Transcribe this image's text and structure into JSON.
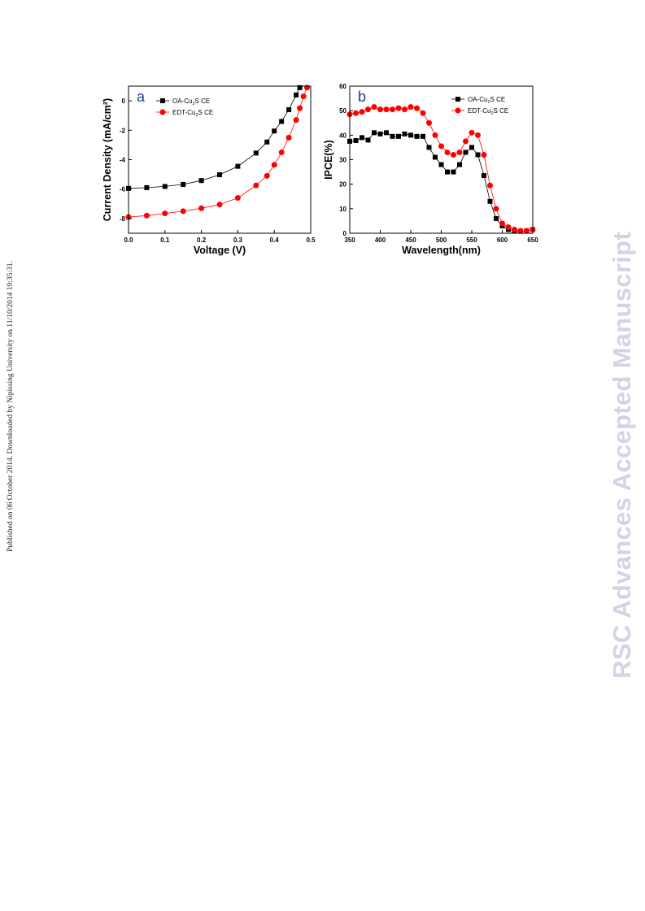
{
  "side_note": "Published on 06 October 2014. Downloaded by Nipissing University on 11/10/2014 19:35:31.",
  "watermark": "RSC Advances Accepted Manuscript",
  "chart_data": [
    {
      "panel_label": "a",
      "type": "scatter",
      "xlabel": "Voltage (V)",
      "ylabel": "Current Density (mA/cm²)",
      "xlim": [
        0,
        0.5
      ],
      "ylim": [
        -9,
        1
      ],
      "xticks": [
        "0.0",
        "0.1",
        "0.2",
        "0.3",
        "0.4",
        "0.5"
      ],
      "yticks": [
        "0",
        "-2",
        "-4",
        "-6",
        "-8"
      ],
      "legend_position": "top-left",
      "series": [
        {
          "name": "OA-Cu2S CE",
          "legend_label": "OA-Cu",
          "legend_sub": "2",
          "legend_suffix": "S CE",
          "color": "#000000",
          "marker": "square",
          "points": [
            [
              0.0,
              -5.95
            ],
            [
              0.05,
              -5.9
            ],
            [
              0.1,
              -5.82
            ],
            [
              0.15,
              -5.68
            ],
            [
              0.2,
              -5.42
            ],
            [
              0.25,
              -5.02
            ],
            [
              0.3,
              -4.45
            ],
            [
              0.35,
              -3.55
            ],
            [
              0.38,
              -2.8
            ],
            [
              0.4,
              -2.05
            ],
            [
              0.42,
              -1.4
            ],
            [
              0.44,
              -0.6
            ],
            [
              0.46,
              0.4
            ],
            [
              0.47,
              0.9
            ]
          ]
        },
        {
          "name": "EDT-Cu2S CE",
          "legend_label": "EDT-Cu",
          "legend_sub": "2",
          "legend_suffix": "S CE",
          "color": "#ff0000",
          "marker": "circle",
          "points": [
            [
              0.0,
              -7.9
            ],
            [
              0.05,
              -7.8
            ],
            [
              0.1,
              -7.65
            ],
            [
              0.15,
              -7.5
            ],
            [
              0.2,
              -7.3
            ],
            [
              0.25,
              -7.05
            ],
            [
              0.3,
              -6.6
            ],
            [
              0.35,
              -5.75
            ],
            [
              0.38,
              -5.1
            ],
            [
              0.4,
              -4.35
            ],
            [
              0.42,
              -3.5
            ],
            [
              0.44,
              -2.5
            ],
            [
              0.46,
              -1.3
            ],
            [
              0.47,
              -0.5
            ],
            [
              0.48,
              0.3
            ],
            [
              0.49,
              0.9
            ]
          ]
        }
      ]
    },
    {
      "panel_label": "b",
      "type": "scatter",
      "xlabel": "Wavelength(nm)",
      "ylabel": "IPCE(%)",
      "xlim": [
        350,
        650
      ],
      "ylim": [
        0,
        60
      ],
      "xticks": [
        "350",
        "400",
        "450",
        "500",
        "550",
        "600",
        "650"
      ],
      "yticks": [
        "0",
        "10",
        "20",
        "30",
        "40",
        "50",
        "60"
      ],
      "legend_position": "top-right",
      "series": [
        {
          "name": "OA-Cu2S CE",
          "legend_label": "OA-Cu",
          "legend_sub": "2",
          "legend_suffix": "S CE",
          "color": "#000000",
          "marker": "square",
          "points": [
            [
              350,
              37.5
            ],
            [
              360,
              37.8
            ],
            [
              370,
              39
            ],
            [
              380,
              38
            ],
            [
              390,
              41
            ],
            [
              400,
              40.5
            ],
            [
              410,
              41
            ],
            [
              420,
              39.5
            ],
            [
              430,
              39.5
            ],
            [
              440,
              40.5
            ],
            [
              450,
              40
            ],
            [
              460,
              39.5
            ],
            [
              470,
              39.5
            ],
            [
              480,
              35
            ],
            [
              490,
              31
            ],
            [
              500,
              28
            ],
            [
              510,
              25
            ],
            [
              520,
              25
            ],
            [
              530,
              28
            ],
            [
              540,
              33
            ],
            [
              550,
              35
            ],
            [
              560,
              32
            ],
            [
              570,
              23.5
            ],
            [
              580,
              13
            ],
            [
              590,
              6
            ],
            [
              600,
              3
            ],
            [
              610,
              1.5
            ],
            [
              620,
              1
            ],
            [
              630,
              0.8
            ],
            [
              640,
              1
            ],
            [
              650,
              1.5
            ]
          ]
        },
        {
          "name": "EDT-Cu2S CE",
          "legend_label": "EDT-Cu",
          "legend_sub": "2",
          "legend_suffix": "S CE",
          "color": "#ff0000",
          "marker": "circle",
          "points": [
            [
              350,
              48.5
            ],
            [
              360,
              49
            ],
            [
              370,
              49.5
            ],
            [
              380,
              50.5
            ],
            [
              390,
              51.5
            ],
            [
              400,
              50.5
            ],
            [
              410,
              50.5
            ],
            [
              420,
              50.5
            ],
            [
              430,
              51
            ],
            [
              440,
              50.5
            ],
            [
              450,
              51.5
            ],
            [
              460,
              51
            ],
            [
              470,
              49
            ],
            [
              480,
              45
            ],
            [
              490,
              40
            ],
            [
              500,
              35.5
            ],
            [
              510,
              33
            ],
            [
              520,
              32
            ],
            [
              530,
              33
            ],
            [
              540,
              37.5
            ],
            [
              550,
              41
            ],
            [
              560,
              40
            ],
            [
              570,
              32
            ],
            [
              580,
              19.5
            ],
            [
              590,
              10
            ],
            [
              600,
              4
            ],
            [
              610,
              2.5
            ],
            [
              620,
              1.5
            ],
            [
              630,
              1
            ],
            [
              640,
              1
            ],
            [
              650,
              1.5
            ]
          ]
        }
      ]
    }
  ]
}
